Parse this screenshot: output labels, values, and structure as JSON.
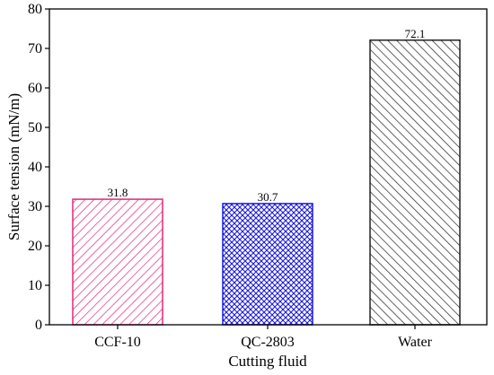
{
  "chart_data": {
    "type": "bar",
    "categories": [
      "CCF-10",
      "QC-2803",
      "Water"
    ],
    "values": [
      31.8,
      30.7,
      72.1
    ],
    "data_labels": [
      "31.8",
      "30.7",
      "72.1"
    ],
    "xlabel": "Cutting fluid",
    "ylabel": "Surface tension (mN/m)",
    "ylim": [
      0,
      80
    ],
    "yticks": [
      0,
      10,
      20,
      30,
      40,
      50,
      60,
      70,
      80
    ],
    "grid": false,
    "legend": "none",
    "bar_styles": [
      {
        "color": "#e0287d",
        "pattern": "diagonal-forward"
      },
      {
        "color": "#1a1adc",
        "pattern": "crosshatch"
      },
      {
        "color": "#222222",
        "pattern": "diagonal-back"
      }
    ]
  }
}
